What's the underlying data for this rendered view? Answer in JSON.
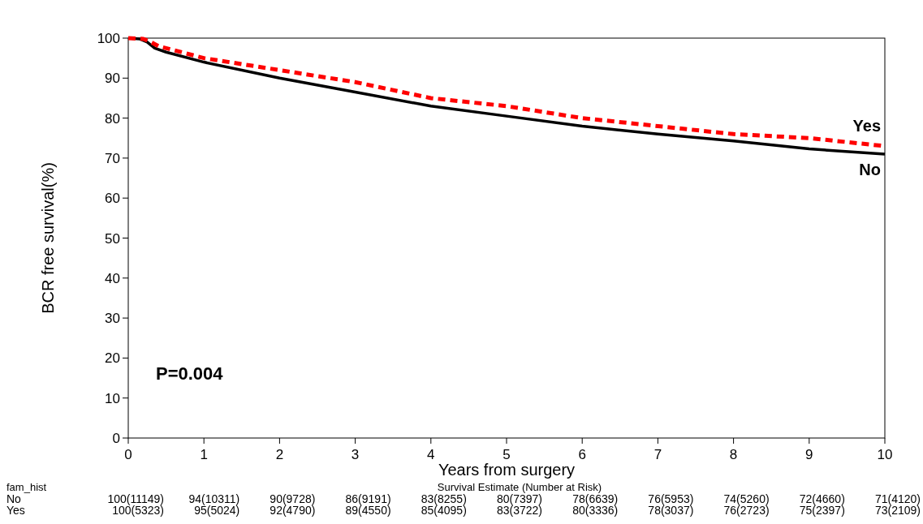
{
  "chart_data": {
    "type": "line",
    "xlabel": "Years from surgery",
    "ylabel": "BCR free survival(%)",
    "xlim": [
      0,
      10
    ],
    "xticks": [
      0,
      1,
      2,
      3,
      4,
      5,
      6,
      7,
      8,
      9,
      10
    ],
    "ylim": [
      0,
      100
    ],
    "yticks": [
      0,
      10,
      20,
      30,
      40,
      50,
      60,
      70,
      80,
      90,
      100
    ],
    "marker": "none",
    "annotations": [
      "P=0.004",
      "fam_hist",
      "Survival Estimate (Number at Risk)",
      "100(11149)",
      "94(10311)",
      "90(9728)",
      "86(9191)",
      "83(8255)",
      "80(7397)",
      "78(6639)",
      "76(5953)",
      "74(5260)",
      "72(4660)",
      "71(4120)",
      "100(5323)",
      "95(5024)",
      "92(4790)",
      "89(4550)",
      "85(4095)",
      "83(3722)",
      "80(3336)",
      "78(3037)",
      "76(2723)",
      "75(2397)",
      "73(2109)"
    ],
    "series": [
      {
        "name": "No",
        "color": "#000000",
        "line_style": "solid",
        "x": [
          0,
          0.15,
          0.25,
          0.35,
          0.5,
          1,
          2,
          3,
          4,
          5,
          6,
          7,
          8,
          9,
          10
        ],
        "values": [
          100,
          99.8,
          99,
          97.5,
          96.5,
          94,
          90,
          86.5,
          83,
          80.5,
          78,
          76,
          74.3,
          72.3,
          71
        ]
      },
      {
        "name": "Yes",
        "color": "#ff0000",
        "line_style": "dashed",
        "x": [
          0,
          0.2,
          0.3,
          0.4,
          1,
          2,
          3,
          4,
          5,
          6,
          7,
          8,
          9,
          10
        ],
        "values": [
          100,
          99.8,
          99,
          98,
          95,
          92,
          89,
          85,
          83,
          80,
          78,
          76,
          75,
          73
        ]
      }
    ]
  }
}
